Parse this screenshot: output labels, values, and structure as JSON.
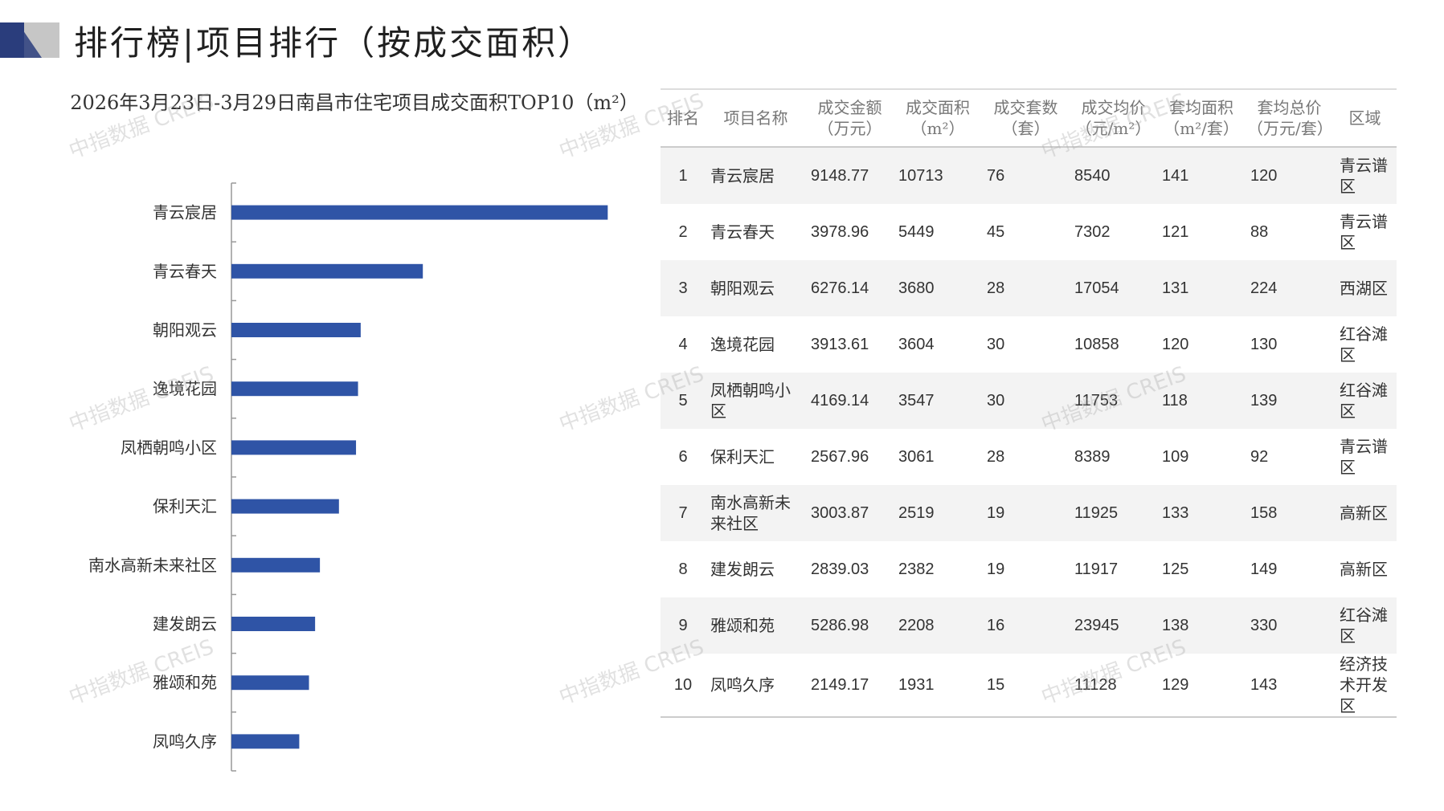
{
  "page": {
    "title": "排行榜|项目排行（按成交面积）",
    "watermark": "中指数据 CREIS"
  },
  "colors": {
    "bar": "#2f54a6",
    "logo_dark": "#2a3d7c",
    "logo_gray": "#c6c6c6"
  },
  "chart_data": {
    "type": "bar",
    "orientation": "horizontal",
    "title": "2026年3月23日-3月29日南昌市住宅项目成交面积TOP10（m²）",
    "categories": [
      "青云宸居",
      "青云春天",
      "朝阳观云",
      "逸境花园",
      "凤栖朝鸣小区",
      "保利天汇",
      "南水高新未来社区",
      "建发朗云",
      "雅颂和苑",
      "凤鸣久序"
    ],
    "values": [
      10713,
      5449,
      3680,
      3604,
      3547,
      3061,
      2519,
      2382,
      2208,
      1931
    ],
    "xlim": [
      0,
      14000
    ],
    "grid": false,
    "legend": "none"
  },
  "table": {
    "headers": [
      "排名",
      "项目名称",
      "成交金额\n（万元）",
      "成交面积\n（m²）",
      "成交套数\n（套）",
      "成交均价\n（元/m²）",
      "套均面积\n（m²/套）",
      "套均总价\n（万元/套）",
      "区域"
    ],
    "rows": [
      {
        "rank": "1",
        "name": "青云宸居",
        "amount": "9148.77",
        "area": "10713",
        "units": "76",
        "avg_price": "8540",
        "avg_area": "141",
        "avg_total": "120",
        "region": "青云谱区"
      },
      {
        "rank": "2",
        "name": "青云春天",
        "amount": "3978.96",
        "area": "5449",
        "units": "45",
        "avg_price": "7302",
        "avg_area": "121",
        "avg_total": "88",
        "region": "青云谱区"
      },
      {
        "rank": "3",
        "name": "朝阳观云",
        "amount": "6276.14",
        "area": "3680",
        "units": "28",
        "avg_price": "17054",
        "avg_area": "131",
        "avg_total": "224",
        "region": "西湖区"
      },
      {
        "rank": "4",
        "name": "逸境花园",
        "amount": "3913.61",
        "area": "3604",
        "units": "30",
        "avg_price": "10858",
        "avg_area": "120",
        "avg_total": "130",
        "region": "红谷滩区"
      },
      {
        "rank": "5",
        "name": "凤栖朝鸣小区",
        "amount": "4169.14",
        "area": "3547",
        "units": "30",
        "avg_price": "11753",
        "avg_area": "118",
        "avg_total": "139",
        "region": "红谷滩区"
      },
      {
        "rank": "6",
        "name": "保利天汇",
        "amount": "2567.96",
        "area": "3061",
        "units": "28",
        "avg_price": "8389",
        "avg_area": "109",
        "avg_total": "92",
        "region": "青云谱区"
      },
      {
        "rank": "7",
        "name": "南水高新未来社区",
        "amount": "3003.87",
        "area": "2519",
        "units": "19",
        "avg_price": "11925",
        "avg_area": "133",
        "avg_total": "158",
        "region": "高新区"
      },
      {
        "rank": "8",
        "name": "建发朗云",
        "amount": "2839.03",
        "area": "2382",
        "units": "19",
        "avg_price": "11917",
        "avg_area": "125",
        "avg_total": "149",
        "region": "高新区"
      },
      {
        "rank": "9",
        "name": "雅颂和苑",
        "amount": "5286.98",
        "area": "2208",
        "units": "16",
        "avg_price": "23945",
        "avg_area": "138",
        "avg_total": "330",
        "region": "红谷滩区"
      },
      {
        "rank": "10",
        "name": "凤鸣久序",
        "amount": "2149.17",
        "area": "1931",
        "units": "15",
        "avg_price": "11128",
        "avg_area": "129",
        "avg_total": "143",
        "region": "经济技术开发区"
      }
    ]
  }
}
